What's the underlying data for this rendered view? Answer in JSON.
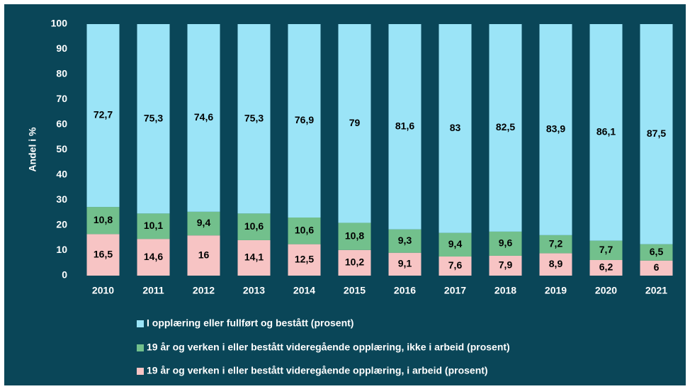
{
  "chart_data": {
    "type": "stacked_bar",
    "y_label": "Andel i %",
    "categories": [
      "2010",
      "2011",
      "2012",
      "2013",
      "2014",
      "2015",
      "2016",
      "2017",
      "2018",
      "2019",
      "2020",
      "2021"
    ],
    "series": [
      {
        "name": "19 år og verken i eller bestått videregående opplæring, i arbeid (prosent)",
        "color": "#f7c4c4",
        "values": [
          16.5,
          14.6,
          16,
          14.1,
          12.5,
          10.2,
          9.1,
          7.6,
          7.9,
          8.9,
          6.2,
          6
        ],
        "value_labels": [
          "16,5",
          "14,6",
          "16",
          "14,1",
          "12,5",
          "10,2",
          "9,1",
          "7,6",
          "7,9",
          "8,9",
          "6,2",
          "6"
        ]
      },
      {
        "name": "19 år og verken i eller bestått videregående opplæring, ikke i arbeid (prosent)",
        "color": "#72c08c",
        "values": [
          10.8,
          10.1,
          9.4,
          10.6,
          10.6,
          10.8,
          9.3,
          9.4,
          9.6,
          7.2,
          7.7,
          6.5
        ],
        "value_labels": [
          "10,8",
          "10,1",
          "9,4",
          "10,6",
          "10,6",
          "10,8",
          "9,3",
          "9,4",
          "9,6",
          "7,2",
          "7,7",
          "6,5"
        ]
      },
      {
        "name": "I opplæring eller fullført og bestått (prosent)",
        "color": "#9be4f7",
        "values": [
          72.7,
          75.3,
          74.6,
          75.3,
          76.9,
          79,
          81.6,
          83,
          82.5,
          83.9,
          86.1,
          87.5
        ],
        "value_labels": [
          "72,7",
          "75,3",
          "74,6",
          "75,3",
          "76,9",
          "79",
          "81,6",
          "83",
          "82,5",
          "83,9",
          "86,1",
          "87,5"
        ]
      }
    ],
    "ylim": [
      0,
      100
    ],
    "yticks": [
      0,
      10,
      20,
      30,
      40,
      50,
      60,
      70,
      80,
      90,
      100
    ],
    "grid": false
  }
}
